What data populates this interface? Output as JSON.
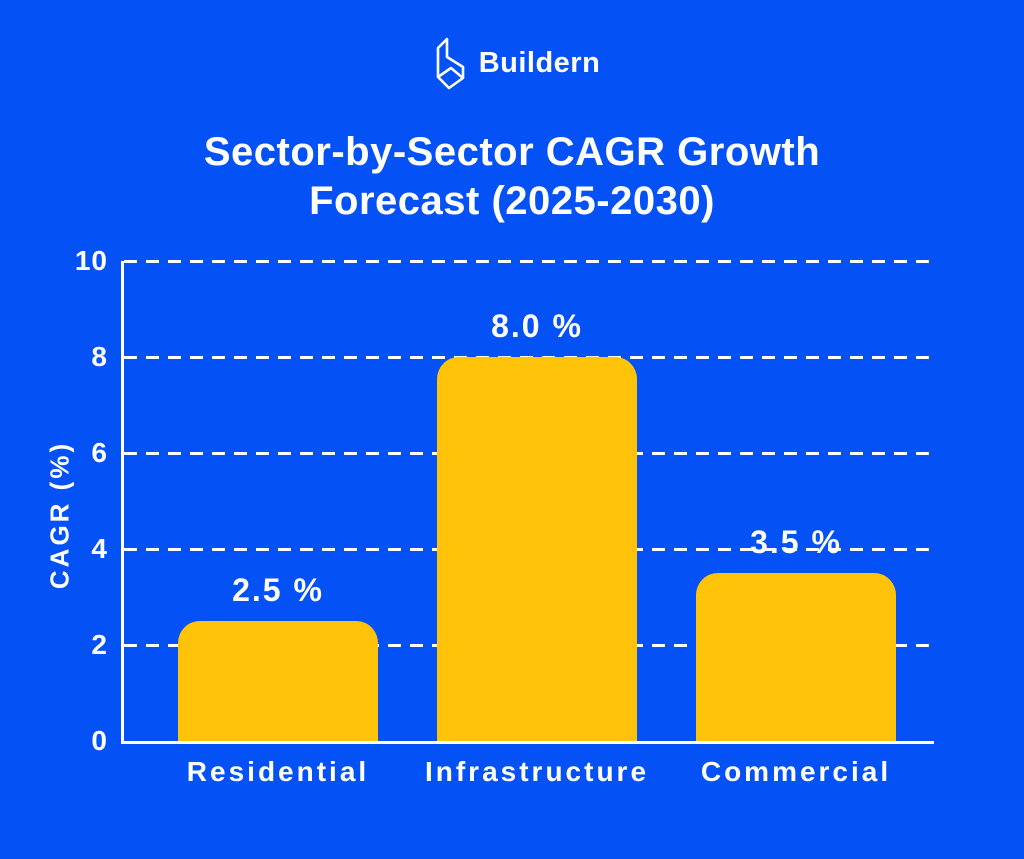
{
  "brand": {
    "name": "Buildern",
    "logo_icon": "buildern-building-outline-icon"
  },
  "title": {
    "line1": "Sector-by-Sector CAGR Growth",
    "line2": "Forecast (2025-2030)"
  },
  "chart_data": {
    "type": "bar",
    "title": "Sector-by-Sector CAGR Growth Forecast (2025-2030)",
    "categories": [
      "Residential",
      "Infrastructure",
      "Commercial"
    ],
    "values": [
      2.5,
      8.0,
      3.5
    ],
    "value_labels": [
      "2.5 %",
      "8.0 %",
      "3.5 %"
    ],
    "xlabel": "",
    "ylabel": "CAGR (%)",
    "yticks": [
      0,
      2,
      4,
      6,
      8,
      10
    ],
    "ytick_labels": [
      "0",
      "2",
      "4",
      "6",
      "8",
      "10"
    ],
    "ylim": [
      0,
      10
    ],
    "grid": "horizontal-dashed",
    "legend": "none",
    "bar_color": "#FFC40A",
    "axis_color": "#FFFFFF",
    "label_color": "#FFFFFF"
  },
  "colors": {
    "background": "#0452F5",
    "bar": "#FFC40A",
    "text": "#FFFFFF"
  }
}
